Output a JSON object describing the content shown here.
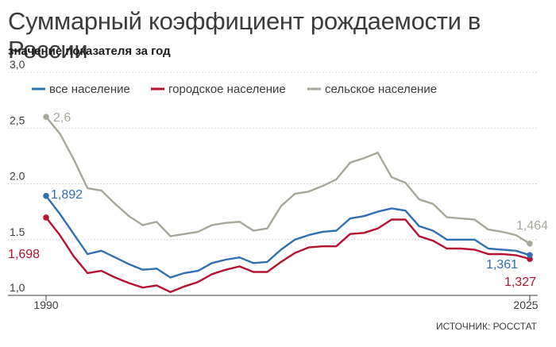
{
  "header": {
    "title": "Суммарный коэффициент рождаемости в России",
    "subtitle": "значение показателя за год"
  },
  "source": "ИСТОЧНИК: РОССТАТ",
  "colors": {
    "total": "#2f6fb3",
    "urban": "#b5122f",
    "rural": "#a6a89a",
    "grid": "#c8c8c8",
    "axis": "#3c3c3c"
  },
  "chart_data": {
    "type": "line",
    "title": "Суммарный коэффициент рождаемости в России",
    "subtitle": "значение показателя за год",
    "xlabel": "",
    "ylabel": "",
    "xlim": [
      1990,
      2025
    ],
    "ylim": [
      1.0,
      3.0
    ],
    "yticks": [
      "1,0",
      "1.5",
      "2.0",
      "2,5",
      "3,0"
    ],
    "xticks": [
      "1990",
      "2025"
    ],
    "grid": true,
    "legend_position": "top-left",
    "x": [
      1990,
      1991,
      1992,
      1993,
      1994,
      1995,
      1996,
      1997,
      1998,
      1999,
      2000,
      2001,
      2002,
      2003,
      2004,
      2005,
      2006,
      2007,
      2008,
      2009,
      2010,
      2011,
      2012,
      2013,
      2014,
      2015,
      2016,
      2017,
      2018,
      2019,
      2020,
      2021,
      2022,
      2023,
      2024,
      2025
    ],
    "series": [
      {
        "name": "все население",
        "key": "total",
        "values": [
          1.892,
          1.73,
          1.55,
          1.37,
          1.4,
          1.34,
          1.28,
          1.23,
          1.24,
          1.16,
          1.2,
          1.22,
          1.29,
          1.32,
          1.34,
          1.29,
          1.3,
          1.41,
          1.5,
          1.54,
          1.57,
          1.58,
          1.69,
          1.71,
          1.75,
          1.78,
          1.76,
          1.62,
          1.58,
          1.5,
          1.5,
          1.5,
          1.42,
          1.41,
          1.4,
          1.361
        ]
      },
      {
        "name": "городское население",
        "key": "urban",
        "values": [
          1.698,
          1.54,
          1.35,
          1.2,
          1.22,
          1.16,
          1.11,
          1.07,
          1.09,
          1.03,
          1.08,
          1.12,
          1.19,
          1.23,
          1.26,
          1.21,
          1.21,
          1.3,
          1.38,
          1.43,
          1.44,
          1.44,
          1.55,
          1.56,
          1.6,
          1.68,
          1.68,
          1.53,
          1.49,
          1.42,
          1.42,
          1.41,
          1.37,
          1.37,
          1.36,
          1.327
        ]
      },
      {
        "name": "сельское население",
        "key": "rural",
        "values": [
          2.6,
          2.45,
          2.22,
          1.96,
          1.94,
          1.82,
          1.71,
          1.63,
          1.66,
          1.53,
          1.55,
          1.57,
          1.63,
          1.65,
          1.66,
          1.58,
          1.6,
          1.8,
          1.91,
          1.93,
          1.98,
          2.04,
          2.19,
          2.23,
          2.28,
          2.06,
          2.01,
          1.86,
          1.82,
          1.7,
          1.69,
          1.68,
          1.59,
          1.57,
          1.54,
          1.464
        ]
      }
    ],
    "point_labels": [
      {
        "series": "rural",
        "text": "2,6"
      },
      {
        "series": "total",
        "text": "1,892"
      },
      {
        "series": "urban",
        "text": "1,698"
      },
      {
        "series": "rural",
        "text": "1,464"
      },
      {
        "series": "total",
        "text": "1,361"
      },
      {
        "series": "urban",
        "text": "1,327"
      }
    ]
  }
}
